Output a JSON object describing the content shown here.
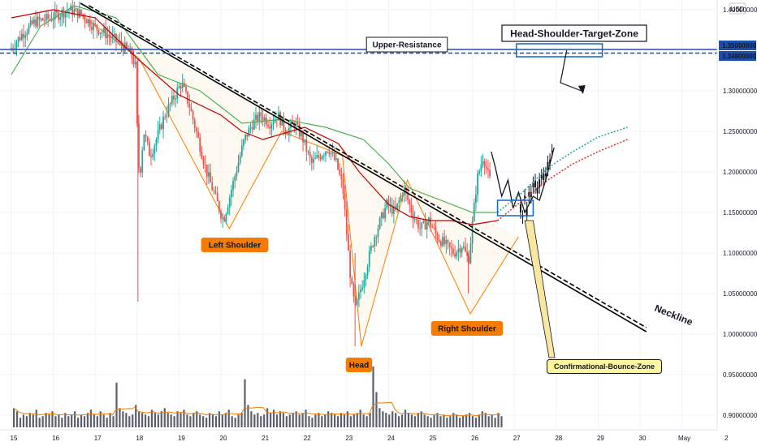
{
  "chart_data": {
    "type": "candlestick",
    "currency_label": "USD",
    "x_ticks": [
      "15",
      "16",
      "17",
      "18",
      "19",
      "20",
      "21",
      "22",
      "23",
      "24",
      "25",
      "26",
      "27",
      "28",
      "29",
      "30",
      "May",
      "2"
    ],
    "y_ticks": [
      "1.40000000",
      "1.35000000",
      "1.34800000",
      "1.30000000",
      "1.25000000",
      "1.20000000",
      "1.15000000",
      "1.10000000",
      "1.05000000",
      "1.00000000",
      "0.95000000",
      "0.90000000"
    ],
    "y_range": [
      0.885,
      1.412
    ],
    "price_tags": [
      {
        "value": 1.35,
        "label": "1.35000000"
      },
      {
        "value": 1.348,
        "label": "1.34800000"
      }
    ],
    "close_path": [
      [
        15.0,
        1.35
      ],
      [
        15.3,
        1.37
      ],
      [
        15.6,
        1.385
      ],
      [
        16.0,
        1.39
      ],
      [
        16.4,
        1.4
      ],
      [
        16.7,
        1.395
      ],
      [
        17.0,
        1.38
      ],
      [
        17.3,
        1.37
      ],
      [
        17.6,
        1.36
      ],
      [
        17.9,
        1.345
      ],
      [
        18.0,
        1.33
      ],
      [
        18.05,
        1.24
      ],
      [
        18.1,
        1.19
      ],
      [
        18.2,
        1.25
      ],
      [
        18.35,
        1.22
      ],
      [
        18.5,
        1.24
      ],
      [
        18.7,
        1.27
      ],
      [
        18.9,
        1.29
      ],
      [
        19.1,
        1.31
      ],
      [
        19.3,
        1.28
      ],
      [
        19.5,
        1.24
      ],
      [
        19.7,
        1.2
      ],
      [
        19.9,
        1.17
      ],
      [
        20.1,
        1.14
      ],
      [
        20.25,
        1.17
      ],
      [
        20.4,
        1.2
      ],
      [
        20.6,
        1.24
      ],
      [
        20.8,
        1.26
      ],
      [
        21.0,
        1.27
      ],
      [
        21.2,
        1.26
      ],
      [
        21.4,
        1.27
      ],
      [
        21.6,
        1.25
      ],
      [
        21.8,
        1.26
      ],
      [
        22.0,
        1.24
      ],
      [
        22.2,
        1.21
      ],
      [
        22.4,
        1.22
      ],
      [
        22.6,
        1.23
      ],
      [
        22.8,
        1.21
      ],
      [
        22.95,
        1.18
      ],
      [
        23.05,
        1.12
      ],
      [
        23.15,
        1.06
      ],
      [
        23.25,
        1.03
      ],
      [
        23.4,
        1.06
      ],
      [
        23.55,
        1.09
      ],
      [
        23.7,
        1.12
      ],
      [
        23.85,
        1.14
      ],
      [
        24.0,
        1.16
      ],
      [
        24.2,
        1.15
      ],
      [
        24.4,
        1.18
      ],
      [
        24.6,
        1.15
      ],
      [
        24.8,
        1.13
      ],
      [
        25.0,
        1.14
      ],
      [
        25.2,
        1.12
      ],
      [
        25.4,
        1.11
      ],
      [
        25.6,
        1.1
      ],
      [
        25.8,
        1.11
      ],
      [
        25.95,
        1.09
      ],
      [
        26.05,
        1.14
      ],
      [
        26.15,
        1.19
      ],
      [
        26.3,
        1.22
      ],
      [
        26.45,
        1.19
      ]
    ],
    "projection_path": [
      [
        26.45,
        1.225
      ],
      [
        26.55,
        1.205
      ],
      [
        26.7,
        1.17
      ],
      [
        26.85,
        1.19
      ],
      [
        26.97,
        1.155
      ],
      [
        27.1,
        1.175
      ],
      [
        27.25,
        1.15
      ],
      [
        27.45,
        1.17
      ],
      [
        27.6,
        1.165
      ],
      [
        27.75,
        1.19
      ],
      [
        27.85,
        1.21
      ],
      [
        27.95,
        1.23
      ]
    ],
    "pattern_points": [
      [
        16.5,
        1.4
      ],
      [
        18.05,
        1.34
      ],
      [
        20.2,
        1.13
      ],
      [
        21.45,
        1.25
      ],
      [
        22.9,
        1.22
      ],
      [
        23.35,
        0.985
      ],
      [
        24.45,
        1.19
      ],
      [
        25.95,
        1.025
      ],
      [
        27.1,
        1.12
      ]
    ],
    "ma_series": [
      {
        "color": "#c00000",
        "points": [
          [
            15.0,
            1.39
          ],
          [
            16.0,
            1.4
          ],
          [
            17.0,
            1.39
          ],
          [
            18.0,
            1.34
          ],
          [
            19.0,
            1.295
          ],
          [
            20.0,
            1.27
          ],
          [
            20.5,
            1.25
          ],
          [
            21.0,
            1.24
          ],
          [
            22.0,
            1.255
          ],
          [
            22.8,
            1.235
          ],
          [
            23.3,
            1.2
          ],
          [
            24.0,
            1.16
          ],
          [
            24.5,
            1.145
          ],
          [
            25.0,
            1.14
          ],
          [
            25.5,
            1.14
          ],
          [
            26.0,
            1.135
          ],
          [
            26.6,
            1.14
          ]
        ]
      },
      {
        "color": "#4caf50",
        "points": [
          [
            15.0,
            1.32
          ],
          [
            15.7,
            1.38
          ],
          [
            16.5,
            1.405
          ],
          [
            17.5,
            1.39
          ],
          [
            18.5,
            1.32
          ],
          [
            19.5,
            1.3
          ],
          [
            20.5,
            1.26
          ],
          [
            21.5,
            1.265
          ],
          [
            22.5,
            1.255
          ],
          [
            23.4,
            1.24
          ],
          [
            24.0,
            1.21
          ],
          [
            24.5,
            1.18
          ],
          [
            25.0,
            1.17
          ],
          [
            25.5,
            1.16
          ],
          [
            26.0,
            1.15
          ],
          [
            26.6,
            1.15
          ]
        ]
      }
    ],
    "forecast_ma": [
      {
        "color": "#d32f2f",
        "points": [
          [
            26.6,
            1.14
          ],
          [
            27.2,
            1.165
          ],
          [
            27.8,
            1.19
          ],
          [
            28.4,
            1.21
          ],
          [
            29.0,
            1.225
          ],
          [
            29.7,
            1.24
          ]
        ]
      },
      {
        "color": "#26a69a",
        "points": [
          [
            26.6,
            1.15
          ],
          [
            27.2,
            1.175
          ],
          [
            27.8,
            1.205
          ],
          [
            28.4,
            1.225
          ],
          [
            29.0,
            1.243
          ],
          [
            29.7,
            1.255
          ]
        ]
      }
    ],
    "neckline": {
      "from": [
        16.65,
        1.408
      ],
      "to": [
        30.15,
        1.003
      ]
    },
    "neckline_dashed": {
      "from": [
        16.85,
        1.405
      ],
      "to": [
        30.15,
        1.008
      ]
    },
    "resistance_levels": [
      1.35,
      1.348
    ],
    "zones": [
      {
        "x0": 27.05,
        "x1": 29.1,
        "y0": 1.358,
        "y1": 1.342
      },
      {
        "x0": 26.6,
        "x1": 27.45,
        "y0": 1.165,
        "y1": 1.146
      }
    ],
    "target_arrow": [
      [
        28.25,
        1.35
      ],
      [
        28.1,
        1.31
      ],
      [
        28.6,
        1.3
      ]
    ],
    "volume": [
      12,
      10,
      6,
      8,
      7,
      9,
      8,
      11,
      6,
      7,
      9,
      8,
      10,
      7,
      8,
      6,
      9,
      7,
      8,
      10,
      6,
      8,
      7,
      9,
      11,
      8,
      7,
      10,
      8,
      6,
      9,
      7,
      28,
      12,
      10,
      9,
      7,
      8,
      14,
      10,
      9,
      8,
      7,
      11,
      9,
      8,
      10,
      12,
      9,
      8,
      7,
      10,
      9,
      11,
      8,
      7,
      9,
      10,
      8,
      7,
      6,
      9,
      8,
      7,
      10,
      8,
      9,
      11,
      7,
      6,
      8,
      9,
      30,
      14,
      10,
      8,
      9,
      7,
      8,
      12,
      9,
      11,
      8,
      10,
      9,
      7,
      8,
      9,
      10,
      8,
      9,
      11,
      7,
      6,
      8,
      9,
      7,
      8,
      10,
      9,
      8,
      7,
      9,
      8,
      10,
      7,
      8,
      9,
      11,
      8,
      7,
      9,
      38,
      22,
      12,
      10,
      9,
      8,
      10,
      9,
      7,
      8,
      11,
      9,
      8,
      7,
      9,
      10,
      8,
      7,
      6,
      8,
      9,
      7,
      8,
      6,
      7,
      9,
      8,
      6,
      7,
      8,
      9,
      7,
      6,
      8,
      10,
      9,
      7,
      8,
      6,
      9,
      7
    ]
  },
  "annotations": {
    "upper_resistance": "Upper-Resistance",
    "target_zone": "Head-Shoulder-Target-Zone",
    "left_shoulder": "Left Shoulder",
    "head": "Head",
    "right_shoulder": "Right Shoulder",
    "bounce_zone": "Confirmational-Bounce-Zone",
    "neckline": "Neckline"
  },
  "colors": {
    "up": "#26a69a",
    "down": "#ef5350",
    "resistance": "#1e4fa8",
    "orange_label": "#f57c00",
    "yellow_label": "#fff59d"
  }
}
